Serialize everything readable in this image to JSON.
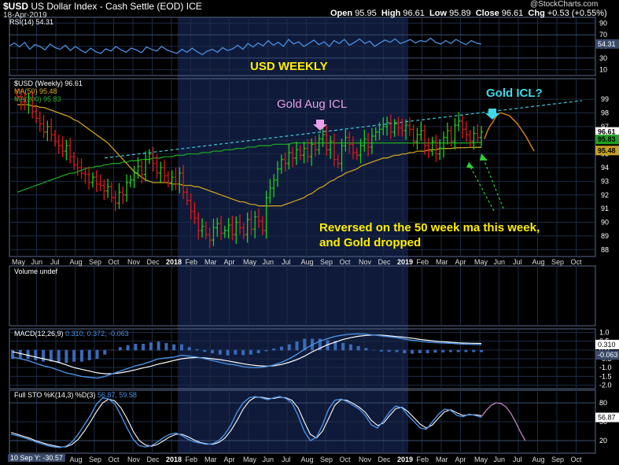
{
  "header": {
    "symbol": "$USD",
    "name": "US Dollar Index - Cash Settle (EOD)",
    "exchange": "ICE",
    "date": "18-Apr-2019",
    "watermark": "@StockCharts.com",
    "open_label": "Open",
    "open": "95.95",
    "high_label": "High",
    "high": "96.61",
    "low_label": "Low",
    "low": "95.89",
    "close_label": "Close",
    "close": "96.61",
    "chg_label": "Chg",
    "chg": "+0.53 (+0.55%)"
  },
  "annotations": {
    "title": "USD WEEKLY",
    "gold_aug": "Gold Aug ICL",
    "gold_icl": "Gold ICL?",
    "reversal_line1": "Reversed on the 50 week ma this week,",
    "reversal_line2": "and Gold dropped"
  },
  "legends": {
    "rsi": "RSI(14) 54.31",
    "price": "$USD (Weekly) 96.61",
    "ma50": "MA(50) 95.48",
    "ma200": "MA(200) 95.83",
    "volume": "Volume undef",
    "macd_name": "MACD(12,26,9)",
    "macd_vals": "0.310, 0.372, -0.063",
    "sto_name": "Full STO %K(14,3) %D(3)",
    "sto_vals": "56.87, 59.58",
    "cursor": "10 Sep Y: -30.57"
  },
  "colors": {
    "background": "#000000",
    "grid": "#1c2c44",
    "shade": "#0f1a3a",
    "up": "#22cc22",
    "down": "#e01818",
    "ma50": "#c8a020",
    "ma200": "#20a020",
    "trend": "#40c8d8",
    "annotation_yellow": "#ffee00",
    "annotation_pink": "#e8a0e8",
    "annotation_cyan": "#40d8e8",
    "projection": "#d08020",
    "indicator": "#4a90e0"
  },
  "chart_data": [
    {
      "type": "line",
      "panel": "rsi",
      "yticks": [
        10,
        30,
        50,
        70,
        90
      ],
      "ylim": [
        0,
        100
      ],
      "last_label": "54.31",
      "series": [
        {
          "name": "RSI(14)",
          "values": [
            51,
            56,
            49,
            57,
            45,
            53,
            50,
            44,
            54,
            48,
            45,
            52,
            43,
            50,
            44,
            39,
            47,
            41,
            38,
            46,
            42,
            50,
            44,
            40,
            47,
            44,
            39,
            49,
            45,
            42,
            50,
            44,
            41,
            38,
            45,
            40,
            47,
            41,
            36,
            42,
            45,
            40,
            48,
            43,
            46,
            52,
            45,
            55,
            49,
            56,
            51,
            60,
            52,
            57,
            50,
            62,
            54,
            58,
            50,
            55,
            61,
            53,
            58,
            50,
            60,
            55,
            62,
            52,
            57,
            63,
            55,
            59,
            50,
            56,
            61,
            57,
            63,
            55,
            58,
            62,
            56,
            60,
            58,
            64,
            57,
            54,
            60,
            55,
            62,
            57,
            53,
            60,
            56,
            54
          ]
        }
      ]
    },
    {
      "type": "bar",
      "panel": "price",
      "ylim": [
        87.5,
        100.5
      ],
      "yticks": [
        88,
        89,
        90,
        91,
        92,
        93,
        94,
        95,
        96,
        97,
        98,
        99
      ],
      "last_labels": [
        "96.61",
        "95.83",
        "95.48"
      ],
      "x_labels": [
        "May",
        "Jun",
        "Jul",
        "Aug",
        "Sep",
        "Oct",
        "Nov",
        "Dec",
        "2018",
        "Feb",
        "Mar",
        "Apr",
        "May",
        "Jun",
        "Jul",
        "Aug",
        "Sep",
        "Oct",
        "Nov",
        "Dec",
        "2019",
        "Feb",
        "Mar",
        "Apr",
        "May",
        "Jun",
        "Jul",
        "Aug",
        "Sep",
        "Oct"
      ],
      "close": [
        99.2,
        98.8,
        98.6,
        99.0,
        98.1,
        97.6,
        97.2,
        96.6,
        97.0,
        96.4,
        95.9,
        95.6,
        95.2,
        95.6,
        94.8,
        94.2,
        94.0,
        93.6,
        93.5,
        92.9,
        93.3,
        92.8,
        92.7,
        92.3,
        92.6,
        91.8,
        91.4,
        92.2,
        92.0,
        92.9,
        93.1,
        93.6,
        94.1,
        93.5,
        94.6,
        95.0,
        94.3,
        93.6,
        94.0,
        93.4,
        92.9,
        93.3,
        92.8,
        93.6,
        92.2,
        91.6,
        90.8,
        90.3,
        89.4,
        89.7,
        89.1,
        88.7,
        89.6,
        89.9,
        89.2,
        89.4,
        89.8,
        89.1,
        90.0,
        89.6,
        89.1,
        90.2,
        89.5,
        90.4,
        90.1,
        89.4,
        91.8,
        92.5,
        93.1,
        93.9,
        94.6,
        94.3,
        95.1,
        94.7,
        95.3,
        94.9,
        95.4,
        94.8,
        95.7,
        95.3,
        96.1,
        96.4,
        95.3,
        95.9,
        94.6,
        94.3,
        95.6,
        96.2,
        95.7,
        95.1,
        94.9,
        95.6,
        96.1,
        95.5,
        96.3,
        96.6,
        96.8,
        97.0,
        97.3,
        96.6,
        97.2,
        96.9,
        96.7,
        97.1,
        96.8,
        95.9,
        96.4,
        96.7,
        95.6,
        95.2,
        95.9,
        95.0,
        95.4,
        96.2,
        96.7,
        95.9,
        97.1,
        97.4,
        96.8,
        96.4,
        95.9,
        96.5,
        96.2,
        96.61
      ],
      "ma50": [
        98.6,
        98.6,
        98.6,
        98.6,
        98.5,
        98.5,
        98.4,
        98.4,
        98.3,
        98.2,
        98.1,
        98.0,
        97.9,
        97.8,
        97.7,
        97.5,
        97.4,
        97.2,
        97.0,
        96.8,
        96.6,
        96.4,
        96.2,
        96.0,
        95.8,
        95.5,
        95.2,
        94.9,
        94.6,
        94.3,
        94.0,
        93.7,
        93.5,
        93.3,
        93.1,
        93.0,
        92.9,
        92.9,
        92.9,
        92.9,
        92.9,
        92.8,
        92.8,
        92.8,
        92.7,
        92.7,
        92.7,
        92.6,
        92.6,
        92.5,
        92.4,
        92.3,
        92.2,
        92.1,
        92.0,
        91.9,
        91.8,
        91.7,
        91.6,
        91.5,
        91.5,
        91.4,
        91.3,
        91.3,
        91.2,
        91.2,
        91.2,
        91.2,
        91.2,
        91.2,
        91.2,
        91.3,
        91.4,
        91.5,
        91.6,
        91.7,
        91.8,
        92.0,
        92.1,
        92.3,
        92.5,
        92.6,
        92.8,
        93.0,
        93.1,
        93.3,
        93.4,
        93.6,
        93.7,
        93.8,
        93.9,
        94.1,
        94.2,
        94.3,
        94.4,
        94.5,
        94.6,
        94.7,
        94.7,
        94.8,
        94.9,
        94.9,
        95.0,
        95.0,
        95.1,
        95.1,
        95.2,
        95.2,
        95.2,
        95.3,
        95.3,
        95.3,
        95.4,
        95.4,
        95.4,
        95.4,
        95.45,
        95.45,
        95.46,
        95.46,
        95.47,
        95.47,
        95.48,
        95.48
      ],
      "ma200": [
        92.2,
        92.3,
        92.4,
        92.5,
        92.6,
        92.7,
        92.8,
        92.9,
        93.0,
        93.1,
        93.2,
        93.3,
        93.4,
        93.5,
        93.6,
        93.6,
        93.7,
        93.8,
        93.9,
        94.0,
        94.0,
        94.1,
        94.1,
        94.2,
        94.2,
        94.3,
        94.3,
        94.3,
        94.4,
        94.4,
        94.5,
        94.5,
        94.5,
        94.6,
        94.6,
        94.6,
        94.7,
        94.7,
        94.7,
        94.8,
        94.8,
        94.8,
        94.9,
        94.9,
        94.9,
        95.0,
        95.0,
        95.0,
        95.0,
        95.1,
        95.1,
        95.1,
        95.2,
        95.2,
        95.2,
        95.3,
        95.3,
        95.3,
        95.4,
        95.4,
        95.4,
        95.5,
        95.5,
        95.5,
        95.6,
        95.6,
        95.6,
        95.6,
        95.7,
        95.7,
        95.7,
        95.7,
        95.7,
        95.8,
        95.8,
        95.8,
        95.8,
        95.8,
        95.8,
        95.8,
        95.8,
        95.8,
        95.8,
        95.8,
        95.8,
        95.8,
        95.8,
        95.8,
        95.8,
        95.8,
        95.8,
        95.8,
        95.8,
        95.8,
        95.8,
        95.8,
        95.8,
        95.8,
        95.8,
        95.8,
        95.8,
        95.8,
        95.8,
        95.8,
        95.8,
        95.8,
        95.8,
        95.8,
        95.8,
        95.8,
        95.8,
        95.8,
        95.8,
        95.8,
        95.8,
        95.8,
        95.8,
        95.8,
        95.8,
        95.8,
        95.8,
        95.8,
        95.83,
        95.83
      ],
      "trendline": [
        94.7,
        98.9
      ],
      "projection": [
        96.1,
        97.3,
        98.0,
        97.8,
        97.2,
        96.3,
        95.2
      ]
    },
    {
      "type": "line",
      "panel": "macd",
      "yticks": [
        1.0,
        0.5,
        0.0,
        -0.5,
        -1.0,
        -1.5,
        -2.0
      ],
      "ylim": [
        -2.2,
        1.2
      ],
      "last_labels": [
        "0.310",
        "-0.063"
      ],
      "series": [
        {
          "name": "MACD",
          "values": [
            -0.4,
            -0.5,
            -0.6,
            -0.75,
            -0.9,
            -1.0,
            -1.15,
            -1.3,
            -1.4,
            -1.5,
            -1.55,
            -1.6,
            -1.5,
            -1.35,
            -1.2,
            -1.05,
            -0.9,
            -0.8,
            -0.65,
            -0.5,
            -0.45,
            -0.4,
            -0.3,
            -0.35,
            -0.4,
            -0.5,
            -0.6,
            -0.7,
            -0.8,
            -0.85,
            -0.95,
            -1.0,
            -1.0,
            -0.95,
            -0.85,
            -0.7,
            -0.5,
            -0.25,
            0.05,
            0.3,
            0.5,
            0.65,
            0.78,
            0.85,
            0.9,
            0.92,
            0.9,
            0.85,
            0.8,
            0.75,
            0.7,
            0.62,
            0.55,
            0.5,
            0.45,
            0.42,
            0.4,
            0.38,
            0.35,
            0.33,
            0.32,
            0.31
          ]
        },
        {
          "name": "Signal",
          "values": [
            -0.1,
            -0.2,
            -0.3,
            -0.4,
            -0.5,
            -0.6,
            -0.7,
            -0.85,
            -1.0,
            -1.1,
            -1.2,
            -1.3,
            -1.35,
            -1.35,
            -1.3,
            -1.22,
            -1.12,
            -1.02,
            -0.92,
            -0.8,
            -0.7,
            -0.6,
            -0.5,
            -0.45,
            -0.43,
            -0.45,
            -0.5,
            -0.55,
            -0.62,
            -0.7,
            -0.78,
            -0.85,
            -0.9,
            -0.92,
            -0.9,
            -0.82,
            -0.7,
            -0.55,
            -0.35,
            -0.1,
            0.1,
            0.3,
            0.45,
            0.6,
            0.7,
            0.78,
            0.83,
            0.85,
            0.84,
            0.8,
            0.76,
            0.72,
            0.67,
            0.6,
            0.55,
            0.5,
            0.47,
            0.44,
            0.41,
            0.39,
            0.38,
            0.372
          ]
        }
      ]
    },
    {
      "type": "line",
      "panel": "stochastic",
      "yticks": [
        80,
        50,
        20
      ],
      "ylim": [
        0,
        100
      ],
      "last_label": "56.87",
      "series": [
        {
          "name": "%K",
          "values": [
            30,
            28,
            25,
            22,
            18,
            15,
            12,
            10,
            9,
            11,
            18,
            30,
            45,
            60,
            78,
            88,
            86,
            78,
            60,
            40,
            22,
            12,
            10,
            12,
            18,
            25,
            30,
            32,
            28,
            22,
            18,
            16,
            14,
            15,
            20,
            30,
            45,
            65,
            80,
            88,
            90,
            88,
            85,
            88,
            90,
            87,
            80,
            60,
            35,
            20,
            25,
            45,
            70,
            84,
            86,
            82,
            76,
            70,
            60,
            45,
            40,
            52,
            66,
            75,
            72,
            60,
            50,
            40,
            38,
            50,
            62,
            70,
            68,
            60,
            58,
            62,
            60,
            57
          ]
        },
        {
          "name": "%D",
          "values": [
            33,
            30,
            27,
            24,
            20,
            17,
            14,
            12,
            10,
            10,
            14,
            22,
            35,
            50,
            66,
            80,
            86,
            83,
            72,
            55,
            35,
            20,
            13,
            11,
            14,
            20,
            26,
            30,
            30,
            26,
            21,
            17,
            15,
            14,
            17,
            24,
            36,
            52,
            70,
            83,
            89,
            89,
            87,
            87,
            89,
            88,
            84,
            72,
            50,
            30,
            24,
            35,
            55,
            76,
            85,
            84,
            79,
            73,
            65,
            52,
            44,
            48,
            60,
            71,
            73,
            66,
            56,
            46,
            40,
            45,
            56,
            66,
            69,
            64,
            60,
            61,
            61,
            59.58
          ]
        }
      ],
      "projection": [
        58,
        68,
        76,
        80,
        79,
        74,
        64,
        50,
        34,
        20
      ]
    }
  ]
}
